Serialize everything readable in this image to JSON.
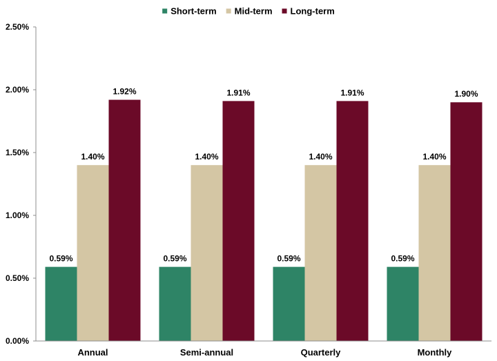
{
  "chart_data": {
    "type": "bar",
    "title": "",
    "xlabel": "",
    "ylabel": "",
    "categories": [
      "Annual",
      "Semi-annual",
      "Quarterly",
      "Monthly"
    ],
    "series": [
      {
        "name": "Short-term",
        "color": "#2e8466",
        "values": [
          0.59,
          0.59,
          0.59,
          0.59
        ],
        "labels": [
          "0.59%",
          "0.59%",
          "0.59%",
          "0.59%"
        ]
      },
      {
        "name": "Mid-term",
        "color": "#d4c6a4",
        "values": [
          1.4,
          1.4,
          1.4,
          1.4
        ],
        "labels": [
          "1.40%",
          "1.40%",
          "1.40%",
          "1.40%"
        ]
      },
      {
        "name": "Long-term",
        "color": "#6b0a28",
        "values": [
          1.92,
          1.91,
          1.91,
          1.9
        ],
        "labels": [
          "1.92%",
          "1.91%",
          "1.91%",
          "1.90%"
        ]
      }
    ],
    "ylim": [
      0,
      2.5
    ],
    "yticks": [
      0,
      0.5,
      1.0,
      1.5,
      2.0,
      2.5
    ],
    "ytick_labels": [
      "0.00%",
      "0.50%",
      "1.00%",
      "1.50%",
      "2.00%",
      "2.50%"
    ],
    "grid": false,
    "legend_position": "top-center"
  }
}
